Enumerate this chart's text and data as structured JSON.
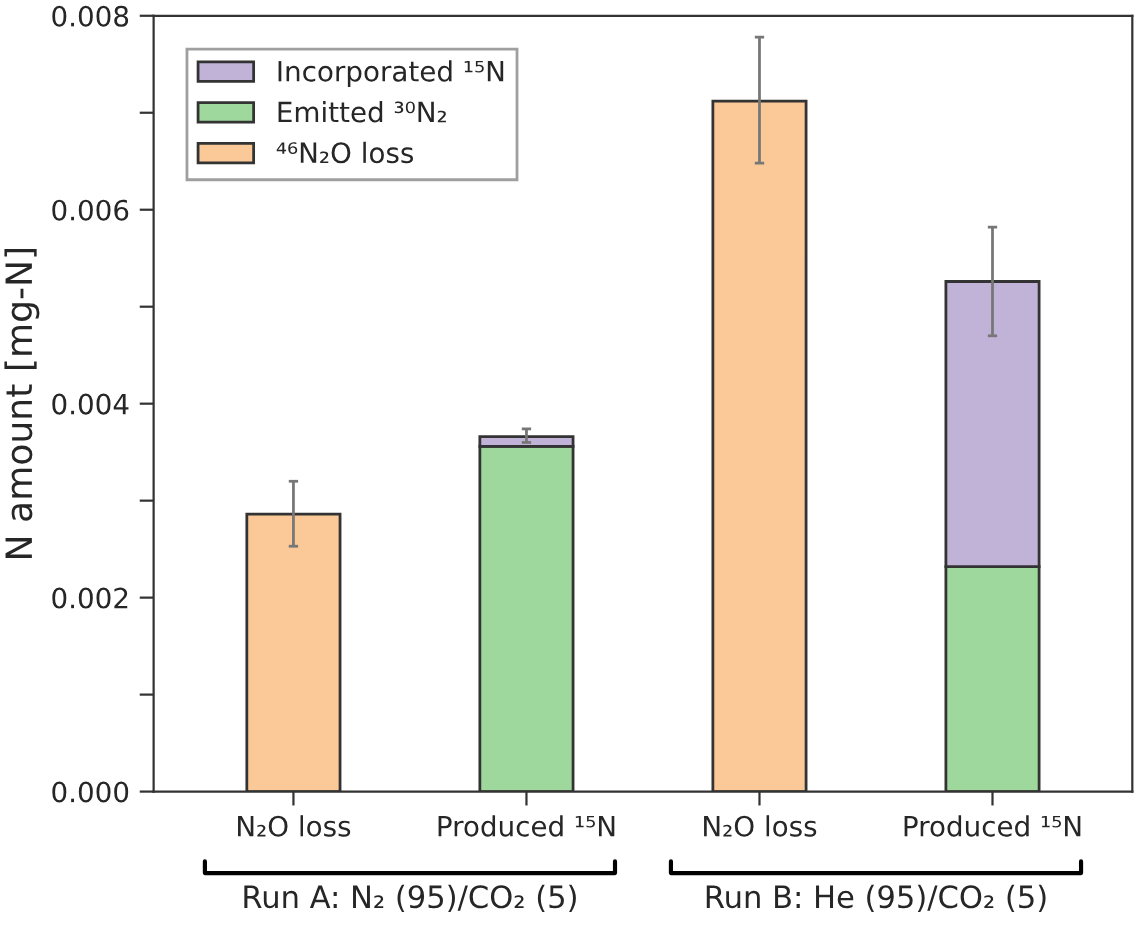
{
  "chart_data": {
    "type": "bar",
    "stacked": true,
    "ylabel": "N amount [mg-N]",
    "categories": [
      "N₂O loss",
      "Produced ¹⁵N",
      "N₂O loss",
      "Produced ¹⁵N"
    ],
    "series": [
      {
        "name": "⁴⁶N₂O loss",
        "color": "#fbc898",
        "values": [
          0.00286,
          null,
          0.00712,
          null
        ],
        "errors": [
          [
            0.00253,
            0.0032
          ],
          null,
          [
            0.00648,
            0.00778
          ],
          null
        ]
      },
      {
        "name": "Emitted ³⁰N₂",
        "color": "#9fd89c",
        "values": [
          null,
          0.00356,
          null,
          0.00232
        ]
      },
      {
        "name": "Incorporated ¹⁵N",
        "color": "#c1b2d8",
        "values": [
          null,
          0.0001,
          null,
          0.00294
        ],
        "errors": [
          null,
          [
            0.0036,
            0.00374
          ],
          null,
          [
            0.0047,
            0.00582
          ]
        ]
      }
    ],
    "ylim": [
      0,
      0.008
    ],
    "yticks": [
      {
        "value": 0,
        "label": "0.000"
      },
      {
        "value": 0.001,
        "label": null
      },
      {
        "value": 0.002,
        "label": "0.002"
      },
      {
        "value": 0.003,
        "label": null
      },
      {
        "value": 0.004,
        "label": "0.004"
      },
      {
        "value": 0.005,
        "label": null
      },
      {
        "value": 0.006,
        "label": "0.006"
      },
      {
        "value": 0.007,
        "label": null
      },
      {
        "value": 0.008,
        "label": "0.008"
      }
    ],
    "legend": "top left",
    "grid": false,
    "annotations": [
      "Run A: N₂ (95)/CO₂ (5)",
      "Run B: He (95)/CO₂ (5)"
    ]
  }
}
